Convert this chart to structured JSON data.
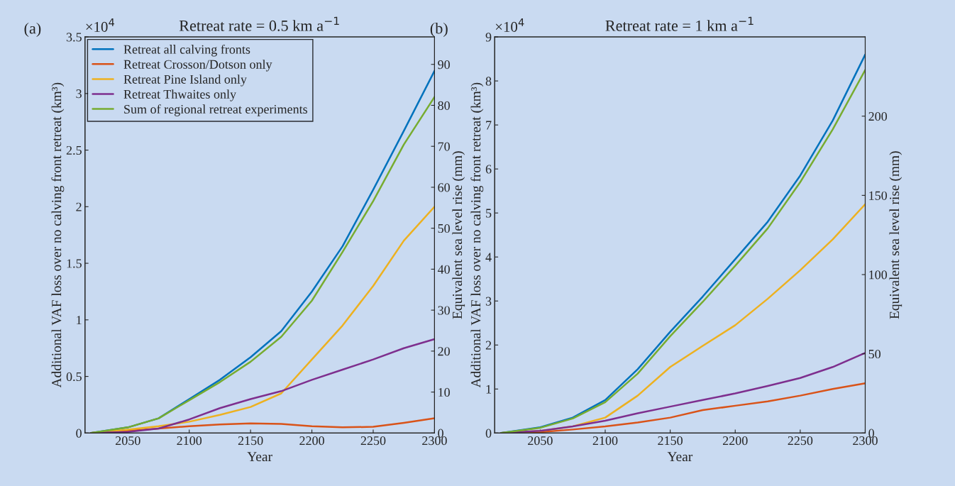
{
  "chart_data": [
    {
      "type": "line",
      "title": "Retreat rate = 0.5 km a$^{−1}$",
      "xlabel": "Year",
      "ylabel": "Additional VAF loss over no calving front retreat (km³)",
      "y2label": "Equivalent sea level rise (mm)",
      "annotations": [
        "(a)",
        "×10$^{4}$"
      ],
      "xlim": [
        2015,
        2300
      ],
      "xticks": [
        2050,
        2100,
        2150,
        2200,
        2250,
        2300
      ],
      "ylim": [
        0,
        3.5
      ],
      "yticks": [
        0,
        0.5,
        1,
        1.5,
        2,
        2.5,
        3,
        3.5
      ],
      "y2lim": [
        0,
        96.7
      ],
      "y2ticks": [
        0,
        10,
        20,
        30,
        40,
        50,
        60,
        70,
        80,
        90
      ],
      "grid": false,
      "legend": "top left",
      "x": [
        2020,
        2050,
        2075,
        2100,
        2125,
        2150,
        2175,
        2200,
        2225,
        2250,
        2275,
        2300
      ],
      "series": [
        {
          "name": "Retreat all calving fronts",
          "color": "#0072bd",
          "values": [
            0,
            0.05,
            0.13,
            0.3,
            0.47,
            0.67,
            0.9,
            1.25,
            1.65,
            2.15,
            2.67,
            3.2
          ]
        },
        {
          "name": "Retreat Crosson/Dotson only",
          "color": "#d95319",
          "values": [
            0,
            0.02,
            0.04,
            0.06,
            0.075,
            0.085,
            0.08,
            0.06,
            0.05,
            0.055,
            0.09,
            0.13
          ]
        },
        {
          "name": "Retreat Pine Island only",
          "color": "#edb120",
          "values": [
            0,
            0.03,
            0.06,
            0.1,
            0.16,
            0.23,
            0.35,
            0.65,
            0.95,
            1.3,
            1.7,
            2.0
          ]
        },
        {
          "name": "Retreat Thwaites only",
          "color": "#7e2f8e",
          "values": [
            0,
            0.01,
            0.04,
            0.12,
            0.22,
            0.3,
            0.37,
            0.47,
            0.56,
            0.65,
            0.75,
            0.83
          ]
        },
        {
          "name": "Sum of regional retreat experiments",
          "color": "#77ac30",
          "values": [
            0,
            0.05,
            0.13,
            0.29,
            0.45,
            0.63,
            0.85,
            1.17,
            1.6,
            2.05,
            2.55,
            2.97
          ]
        }
      ]
    },
    {
      "type": "line",
      "title": "Retreat rate = 1 km a$^{−1}$",
      "xlabel": "Year",
      "ylabel": "Additional VAF loss over no calving front retreat (km³)",
      "y2label": "Equivalent sea level rise (mm)",
      "annotations": [
        "(b)",
        "×10$^{4}$"
      ],
      "xlim": [
        2015,
        2300
      ],
      "xticks": [
        2050,
        2100,
        2150,
        2200,
        2250,
        2300
      ],
      "ylim": [
        0,
        9
      ],
      "yticks": [
        0,
        1,
        2,
        3,
        4,
        5,
        6,
        7,
        8,
        9
      ],
      "y2lim": [
        0,
        250
      ],
      "y2ticks": [
        0,
        50,
        100,
        150,
        200
      ],
      "grid": false,
      "legend": false,
      "x": [
        2020,
        2050,
        2075,
        2100,
        2125,
        2150,
        2175,
        2200,
        2225,
        2250,
        2275,
        2300
      ],
      "series": [
        {
          "color": "#0072bd",
          "values": [
            0,
            0.13,
            0.35,
            0.75,
            1.45,
            2.3,
            3.1,
            3.95,
            4.8,
            5.85,
            7.1,
            8.6
          ]
        },
        {
          "color": "#d95319",
          "values": [
            0,
            0.02,
            0.08,
            0.15,
            0.24,
            0.35,
            0.52,
            0.62,
            0.72,
            0.85,
            1.0,
            1.13
          ]
        },
        {
          "color": "#edb120",
          "values": [
            0,
            0.05,
            0.15,
            0.35,
            0.85,
            1.5,
            1.98,
            2.45,
            3.05,
            3.7,
            4.4,
            5.2
          ]
        },
        {
          "color": "#7e2f8e",
          "values": [
            0,
            0.05,
            0.15,
            0.28,
            0.45,
            0.6,
            0.75,
            0.9,
            1.07,
            1.25,
            1.5,
            1.82
          ]
        },
        {
          "color": "#77ac30",
          "values": [
            0,
            0.12,
            0.33,
            0.7,
            1.35,
            2.2,
            2.98,
            3.8,
            4.65,
            5.7,
            6.9,
            8.25
          ]
        }
      ]
    }
  ]
}
